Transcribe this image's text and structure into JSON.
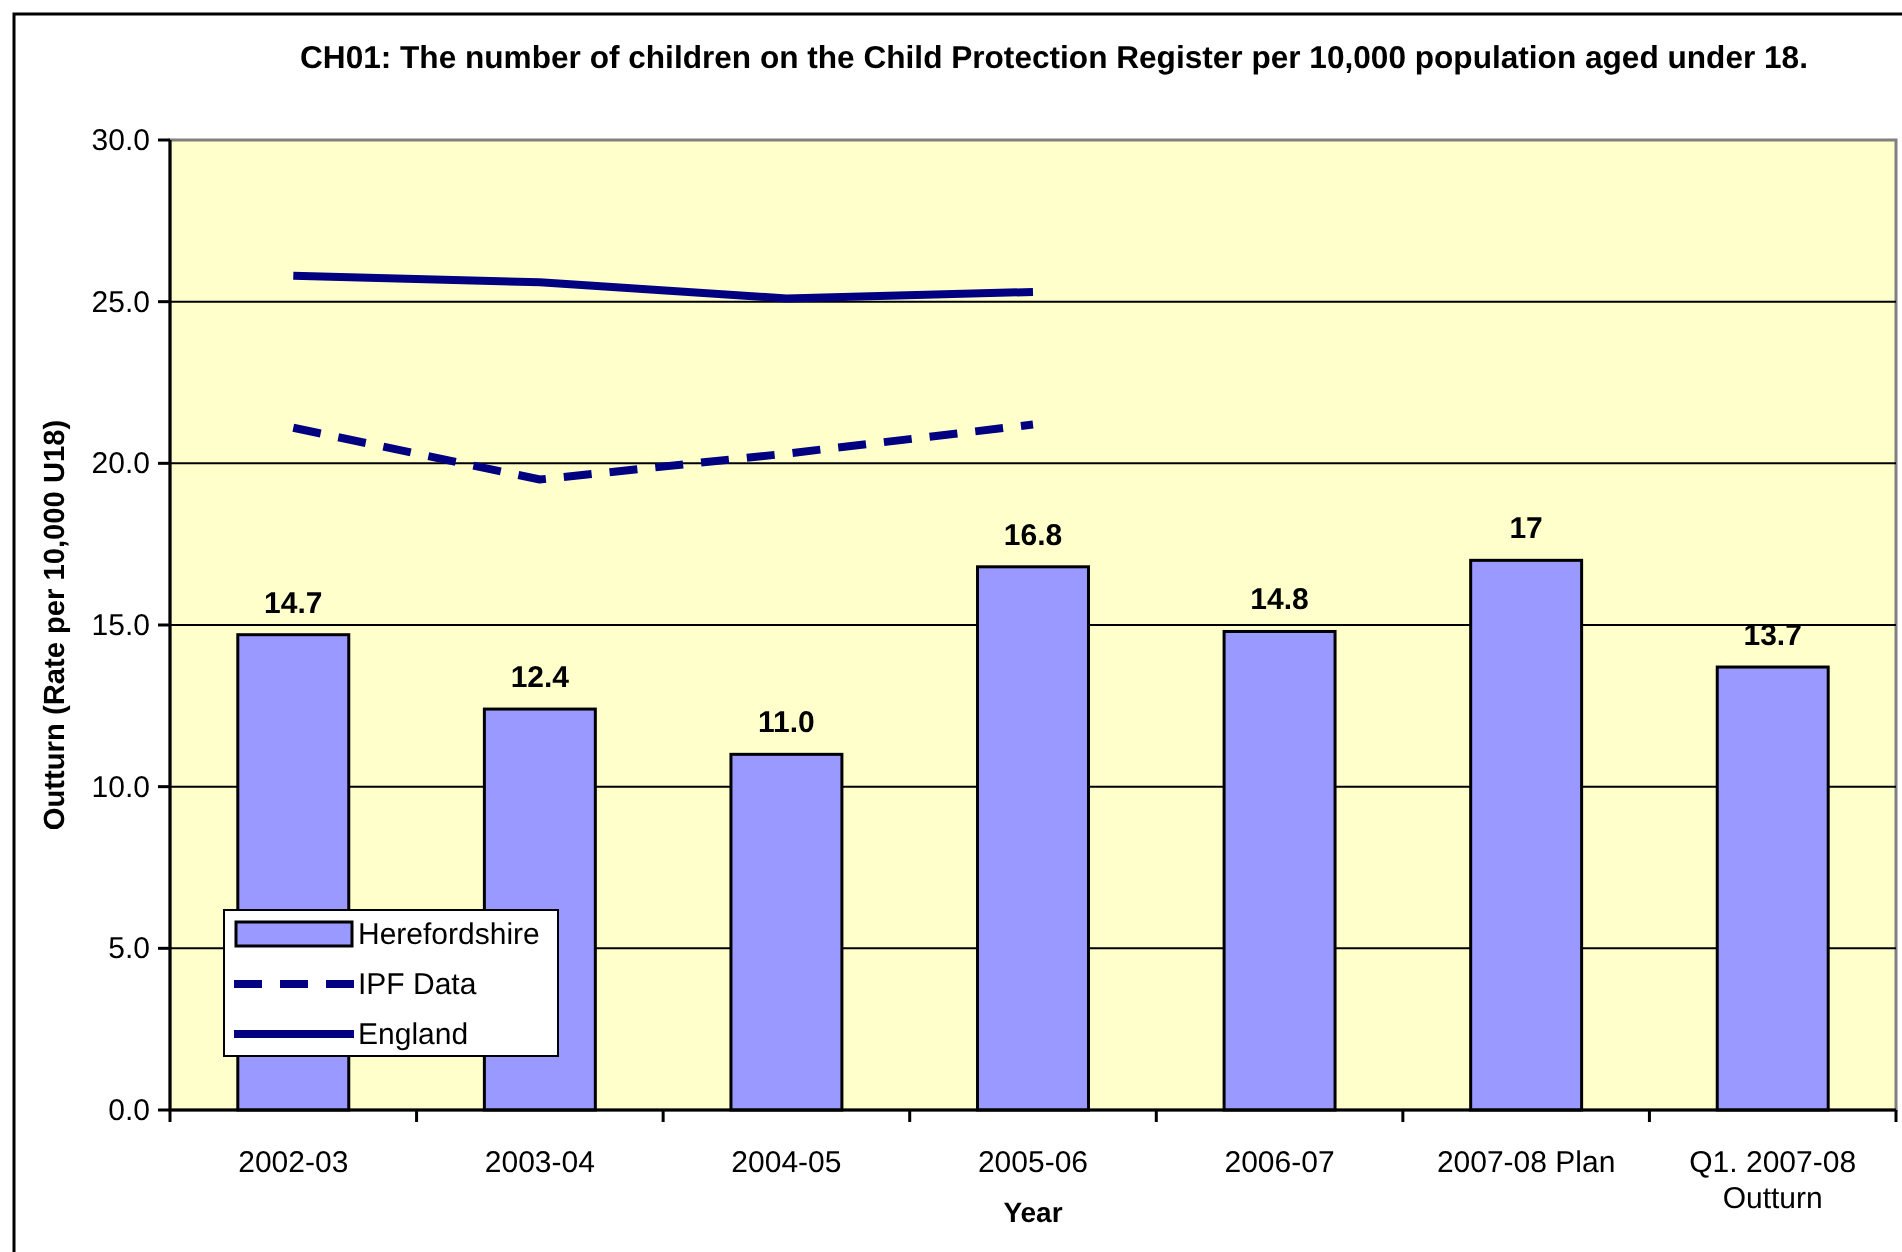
{
  "chart_data": {
    "type": "bar",
    "title": "CH01: The number of children on the Child Protection Register per 10,000 population aged under 18.",
    "xlabel": "Year",
    "ylabel": "Outturn (Rate per 10,000 U18)",
    "categories": [
      "2002-03",
      "2003-04",
      "2004-05",
      "2005-06",
      "2006-07",
      "2007-08 Plan",
      "Q1. 2007-08 Outturn"
    ],
    "series": [
      {
        "name": "Herefordshire",
        "color": "#9999ff",
        "values": [
          14.7,
          12.4,
          11.0,
          16.8,
          14.8,
          17,
          13.7
        ],
        "value_labels": [
          "14.7",
          "12.4",
          "11.0",
          "16.8",
          "14.8",
          "17",
          "13.7"
        ]
      },
      {
        "name": "IPF Data",
        "type": "line",
        "color": "#000080",
        "line_style": "dashed",
        "values": [
          21.1,
          19.5,
          20.3,
          21.2,
          null,
          null,
          null
        ]
      },
      {
        "name": "England",
        "type": "line",
        "color": "#000080",
        "line_style": "solid",
        "values": [
          25.8,
          25.6,
          25.1,
          25.3,
          null,
          null,
          null
        ]
      }
    ],
    "ylim": [
      0,
      30
    ],
    "yticks": [
      {
        "value": 0,
        "label": "0.0"
      },
      {
        "value": 5,
        "label": "5.0"
      },
      {
        "value": 10,
        "label": "10.0"
      },
      {
        "value": 15,
        "label": "15.0"
      },
      {
        "value": 20,
        "label": "20.0"
      },
      {
        "value": 25,
        "label": "25.0"
      },
      {
        "value": 30,
        "label": "30.0"
      }
    ],
    "grid": "y",
    "legend": "bottom left"
  }
}
